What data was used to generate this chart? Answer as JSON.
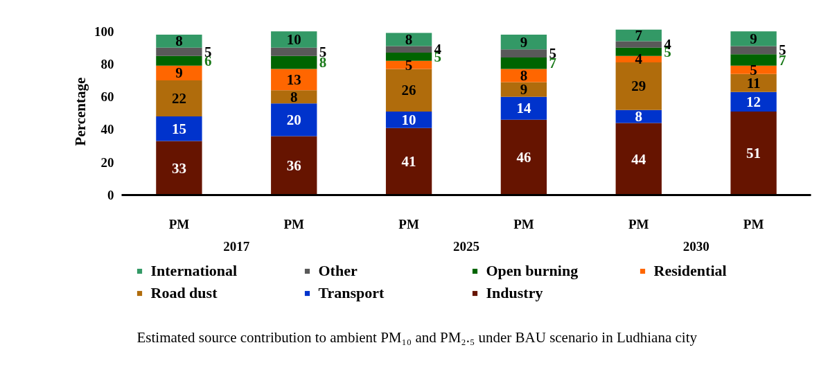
{
  "chart_data": {
    "type": "bar",
    "stacked": true,
    "ylabel": "Percentage",
    "categories": [
      "PM",
      "PM",
      "PM",
      "PM",
      "PM",
      "PM"
    ],
    "series": [
      {
        "name": "Industry",
        "color": "#661400",
        "values": [
          33,
          36,
          41,
          46,
          44,
          51
        ]
      },
      {
        "name": "Transport",
        "color": "#0033cc",
        "values": [
          15,
          20,
          10,
          14,
          8,
          12
        ]
      },
      {
        "name": "Road dust",
        "color": "#b06c0c",
        "values": [
          22,
          8,
          26,
          9,
          29,
          11
        ]
      },
      {
        "name": "Residential",
        "color": "#ff6600",
        "values": [
          9,
          13,
          5,
          8,
          4,
          5
        ]
      },
      {
        "name": "Open burning",
        "color": "#006400",
        "values": [
          6,
          8,
          5,
          7,
          5,
          7
        ]
      },
      {
        "name": "Other",
        "color": "#595959",
        "values": [
          5,
          5,
          4,
          5,
          4,
          5
        ]
      },
      {
        "name": "International",
        "color": "#339966",
        "values": [
          8,
          10,
          8,
          9,
          7,
          9
        ]
      }
    ],
    "ylim": [
      0,
      102
    ],
    "yticks": [
      0,
      20,
      40,
      60,
      80,
      100
    ],
    "grid": false,
    "legend": "bottom",
    "data_labels": true,
    "annotations": [
      "2017",
      "2025",
      "2030",
      "Estimated source contribution to ambient PM₁₀ and PM₂.₅ under BAU scenario in Ludhiana city"
    ]
  }
}
